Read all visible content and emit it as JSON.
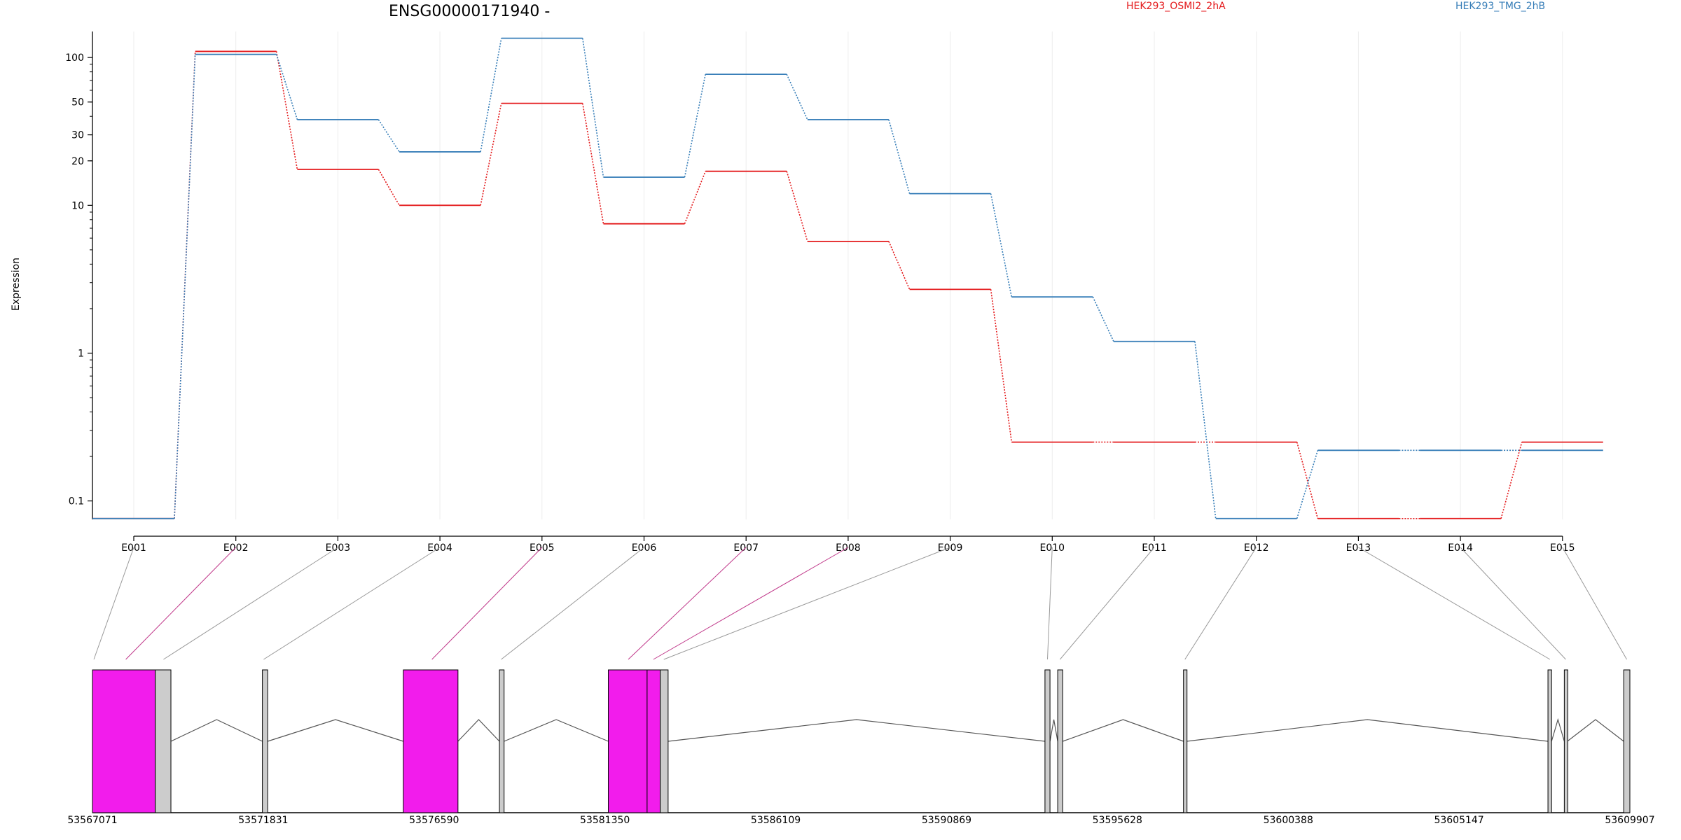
{
  "chart_data": {
    "type": "line",
    "title": "ENSG00000171940 -",
    "ylabel": "Expression",
    "xlabel": "",
    "y_scale": "log",
    "ylim": [
      0.075,
      150
    ],
    "y_ticks": [
      {
        "value": 0.1,
        "label": "0.1"
      },
      {
        "value": 1,
        "label": "1"
      },
      {
        "value": 10,
        "label": "10"
      },
      {
        "value": 20,
        "label": "20"
      },
      {
        "value": 30,
        "label": "30"
      },
      {
        "value": 50,
        "label": "50"
      },
      {
        "value": 100,
        "label": "100"
      }
    ],
    "categories": [
      "E001",
      "E002",
      "E003",
      "E004",
      "E005",
      "E006",
      "E007",
      "E008",
      "E009",
      "E010",
      "E011",
      "E012",
      "E013",
      "E014",
      "E015"
    ],
    "grid": "vertical",
    "legend_position": "top-right",
    "series": [
      {
        "name": "HEK293_OSMI2_2hA",
        "color": "#e41a1c",
        "values": [
          0.076,
          110,
          17.5,
          10,
          49,
          7.5,
          17,
          5.7,
          2.7,
          0.25,
          0.25,
          0.25,
          0.076,
          0.076,
          0.25
        ]
      },
      {
        "name": "HEK293_TMG_2hB",
        "color": "#377eb8",
        "values": [
          0.076,
          105,
          38,
          23,
          135,
          15.5,
          77,
          38,
          12,
          2.4,
          1.2,
          0.076,
          0.22,
          0.22,
          0.22
        ]
      }
    ],
    "gene_model": {
      "coordinate_labels": [
        "53567071",
        "53571831",
        "53576590",
        "53581350",
        "53586109",
        "53590869",
        "53595628",
        "53600388",
        "53605147",
        "53609907"
      ],
      "coord_start": 53567071,
      "coord_end": 53609907,
      "exon_fill": "#f21cec",
      "exon_gray": "#cccccc",
      "exons": [
        {
          "start": 53567071,
          "end": 53568821,
          "kind": "coding"
        },
        {
          "start": 53568821,
          "end": 53569257,
          "kind": "utr"
        },
        {
          "start": 53571806,
          "end": 53571953,
          "kind": "utr"
        },
        {
          "start": 53575732,
          "end": 53577255,
          "kind": "coding"
        },
        {
          "start": 53578410,
          "end": 53578540,
          "kind": "utr"
        },
        {
          "start": 53581445,
          "end": 53582525,
          "kind": "coding"
        },
        {
          "start": 53582525,
          "end": 53582890,
          "kind": "coding"
        },
        {
          "start": 53582890,
          "end": 53583110,
          "kind": "utr"
        },
        {
          "start": 53593610,
          "end": 53593750,
          "kind": "utr"
        },
        {
          "start": 53593965,
          "end": 53594105,
          "kind": "utr"
        },
        {
          "start": 53597470,
          "end": 53597560,
          "kind": "utr"
        },
        {
          "start": 53607625,
          "end": 53607725,
          "kind": "utr"
        },
        {
          "start": 53608080,
          "end": 53608165,
          "kind": "utr"
        },
        {
          "start": 53609735,
          "end": 53609907,
          "kind": "utr"
        }
      ],
      "introns": [
        {
          "from": 53569257,
          "to": 53571806
        },
        {
          "from": 53571953,
          "to": 53575732
        },
        {
          "from": 53577255,
          "to": 53578410
        },
        {
          "from": 53578540,
          "to": 53581445
        },
        {
          "from": 53583110,
          "to": 53593610
        },
        {
          "from": 53593750,
          "to": 53593965
        },
        {
          "from": 53594105,
          "to": 53597470
        },
        {
          "from": 53597560,
          "to": 53607625
        },
        {
          "from": 53607725,
          "to": 53608080
        },
        {
          "from": 53608165,
          "to": 53609735
        }
      ],
      "connectors": [
        {
          "exon": "E001",
          "coord": 53567110,
          "color": "#999999"
        },
        {
          "exon": "E002",
          "coord": 53568000,
          "color": "#c0388a"
        },
        {
          "exon": "E003",
          "coord": 53569050,
          "color": "#999999"
        },
        {
          "exon": "E004",
          "coord": 53571840,
          "color": "#999999"
        },
        {
          "exon": "E005",
          "coord": 53576530,
          "color": "#c0388a"
        },
        {
          "exon": "E006",
          "coord": 53578460,
          "color": "#999999"
        },
        {
          "exon": "E007",
          "coord": 53582000,
          "color": "#c0388a"
        },
        {
          "exon": "E008",
          "coord": 53582700,
          "color": "#c0388a"
        },
        {
          "exon": "E009",
          "coord": 53582990,
          "color": "#999999"
        },
        {
          "exon": "E010",
          "coord": 53593680,
          "color": "#999999"
        },
        {
          "exon": "E011",
          "coord": 53594030,
          "color": "#999999"
        },
        {
          "exon": "E012",
          "coord": 53597510,
          "color": "#999999"
        },
        {
          "exon": "E013",
          "coord": 53607680,
          "color": "#999999"
        },
        {
          "exon": "E014",
          "coord": 53608120,
          "color": "#999999"
        },
        {
          "exon": "E015",
          "coord": 53609820,
          "color": "#999999"
        }
      ]
    }
  }
}
